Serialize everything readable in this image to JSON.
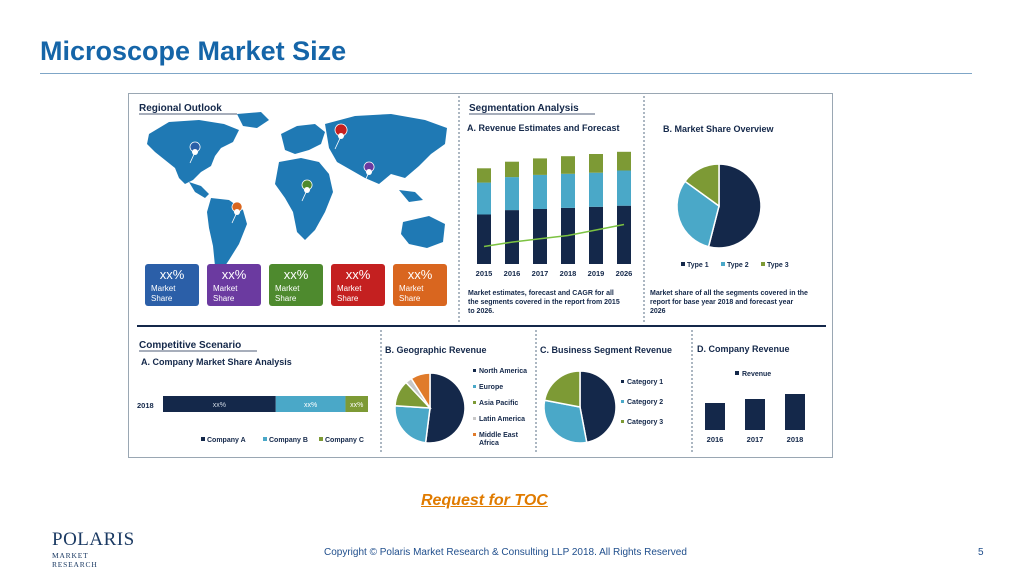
{
  "slide": {
    "title": "Microscope Market Size",
    "toc_link": "Request for TOC",
    "logo_main": "POLARIS",
    "logo_sub": "MARKET RESEARCH",
    "copyright": "Copyright © Polaris Market Research & Consulting LLP 2018. All Rights Reserved",
    "page_number": "5"
  },
  "colors": {
    "navy": "#14284a",
    "teal": "#4aa8c8",
    "olive": "#7d9a35",
    "green_line": "#7cc242"
  },
  "regional": {
    "heading": "Regional Outlook",
    "cards": [
      {
        "value": "xx%",
        "label1": "Market",
        "label2": "Share",
        "color": "#2b5fa8"
      },
      {
        "value": "xx%",
        "label1": "Market",
        "label2": "Share",
        "color": "#6b3aa0"
      },
      {
        "value": "xx%",
        "label1": "Market",
        "label2": "Share",
        "color": "#4e8a2e"
      },
      {
        "value": "xx%",
        "label1": "Market",
        "label2": "Share",
        "color": "#c42020"
      },
      {
        "value": "xx%",
        "label1": "Market",
        "label2": "Share",
        "color": "#d9661f"
      }
    ]
  },
  "segmentation": {
    "heading": "Segmentation Analysis",
    "a_heading": "A. Revenue Estimates and Forecast",
    "a_caption": [
      "Market estimates, forecast and CAGR for all",
      "the segments covered in the report from 2015",
      "to 2026."
    ],
    "b_heading": "B. Market Share Overview",
    "b_caption": [
      "Market share of all the segments covered in the",
      "report for base year 2018 and forecast year",
      "2026"
    ]
  },
  "competitive": {
    "heading": "Competitive Scenario",
    "a_heading": "A. Company Market Share Analysis",
    "b_heading": "B. Geographic Revenue",
    "c_heading": "C. Business Segment Revenue",
    "d_heading": "D. Company Revenue"
  },
  "chart_data": [
    {
      "type": "bar",
      "title": "A. Revenue Estimates and Forecast",
      "categories": [
        "2015",
        "2016",
        "2017",
        "2018",
        "2019",
        "2026"
      ],
      "series": [
        {
          "values": [
            45,
            49,
            50,
            51,
            52,
            53
          ]
        },
        {
          "values": [
            29,
            30,
            31,
            31,
            31,
            32
          ]
        },
        {
          "values": [
            13,
            14,
            15,
            16,
            17,
            17
          ]
        }
      ],
      "line": [
        5,
        9,
        12,
        15,
        20,
        25
      ],
      "ylim": [
        0,
        100
      ]
    },
    {
      "type": "pie",
      "title": "B. Market Share Overview",
      "labels": [
        "Type 1",
        "Type 2",
        "Type 3"
      ],
      "values": [
        54,
        31,
        15
      ]
    },
    {
      "type": "bar",
      "title": "A. Company Market Share Analysis",
      "categories": [
        "2018"
      ],
      "series": [
        {
          "name": "Company  A",
          "values": [
            55
          ],
          "label": "xx%"
        },
        {
          "name": "Company B",
          "values": [
            34
          ],
          "label": "xx%"
        },
        {
          "name": "Company C",
          "values": [
            11
          ],
          "label": "xx%"
        }
      ],
      "orientation": "horizontal-stacked"
    },
    {
      "type": "pie",
      "title": "B. Geographic Revenue",
      "labels": [
        "North America",
        "Europe",
        "Asia Pacific",
        "Latin America",
        "Middle East Africa"
      ],
      "label_lines": [
        [
          "North America"
        ],
        [
          "Europe"
        ],
        [
          "Asia Pacific"
        ],
        [
          "Latin America"
        ],
        [
          "Middle East",
          "Africa"
        ]
      ],
      "values": [
        52,
        24,
        12,
        3,
        9
      ],
      "colors": [
        "#14284a",
        "#4aa8c8",
        "#7d9a35",
        "#c8c8c8",
        "#e07b2a"
      ]
    },
    {
      "type": "pie",
      "title": "C. Business Segment Revenue",
      "labels": [
        "Category 1",
        "Category 2",
        "Category 3"
      ],
      "values": [
        47,
        31,
        22
      ]
    },
    {
      "type": "bar",
      "title": "D. Company Revenue",
      "categories": [
        "2016",
        "2017",
        "2018"
      ],
      "series": [
        {
          "name": "Revenue",
          "values": [
            27,
            31,
            36
          ]
        }
      ],
      "ylim": [
        0,
        50
      ]
    }
  ]
}
